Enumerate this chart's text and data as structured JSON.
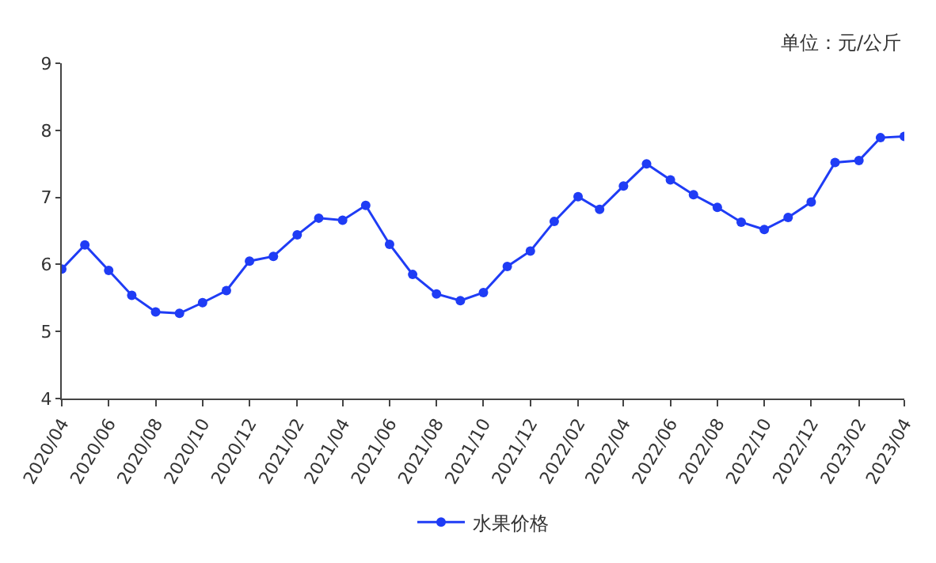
{
  "chart_data": {
    "type": "line",
    "x": [
      "2020-04",
      "2020-05",
      "2020-06",
      "2020-07",
      "2020-08",
      "2020-09",
      "2020-10",
      "2020-11",
      "2020-12",
      "2021-01",
      "2021-02",
      "2021-03",
      "2021-04",
      "2021-05",
      "2021-06",
      "2021-07",
      "2021-08",
      "2021-09",
      "2021-10",
      "2021-11",
      "2021-12",
      "2022-01",
      "2022-02",
      "2022-03",
      "2022-04",
      "2022-05",
      "2022-06",
      "2022-07",
      "2022-08",
      "2022-09",
      "2022-10",
      "2022-11",
      "2022-12",
      "2023-01",
      "2023-02",
      "2023-03",
      "2023-04"
    ],
    "series": [
      {
        "name": "水果价格",
        "color": "#1f3cf5",
        "values": [
          5.93,
          6.29,
          5.91,
          5.54,
          5.29,
          5.27,
          5.43,
          5.61,
          6.05,
          6.12,
          6.44,
          6.69,
          6.66,
          6.88,
          6.3,
          5.85,
          5.56,
          5.46,
          5.58,
          5.97,
          6.2,
          6.64,
          7.01,
          6.82,
          7.17,
          7.5,
          7.26,
          7.04,
          6.85,
          6.63,
          6.52,
          6.7,
          6.93,
          7.52,
          7.55,
          7.89,
          7.91
        ]
      }
    ],
    "xlim": [
      "2020-04",
      "2023-04"
    ],
    "xticks": [
      {
        "value": "2020-04",
        "label": "2020/04"
      },
      {
        "value": "2020-06",
        "label": "2020/06"
      },
      {
        "value": "2020-08",
        "label": "2020/08"
      },
      {
        "value": "2020-10",
        "label": "2020/10"
      },
      {
        "value": "2020-12",
        "label": "2020/12"
      },
      {
        "value": "2021-02",
        "label": "2021/02"
      },
      {
        "value": "2021-04",
        "label": "2021/04"
      },
      {
        "value": "2021-06",
        "label": "2021/06"
      },
      {
        "value": "2021-08",
        "label": "2021/08"
      },
      {
        "value": "2021-10",
        "label": "2021/10"
      },
      {
        "value": "2021-12",
        "label": "2021/12"
      },
      {
        "value": "2022-02",
        "label": "2022/02"
      },
      {
        "value": "2022-04",
        "label": "2022/04"
      },
      {
        "value": "2022-06",
        "label": "2022/06"
      },
      {
        "value": "2022-08",
        "label": "2022/08"
      },
      {
        "value": "2022-10",
        "label": "2022/10"
      },
      {
        "value": "2022-12",
        "label": "2022/12"
      },
      {
        "value": "2023-02",
        "label": "2023/02"
      },
      {
        "value": "2023-04",
        "label": "2023/04"
      }
    ],
    "ylim": [
      4,
      9
    ],
    "yticks": [
      4,
      5,
      6,
      7,
      8,
      9
    ],
    "annotations": [
      "单位：元/公斤"
    ],
    "grid": false,
    "legend": "bottom",
    "marker": "circle",
    "line_style": "solid"
  }
}
